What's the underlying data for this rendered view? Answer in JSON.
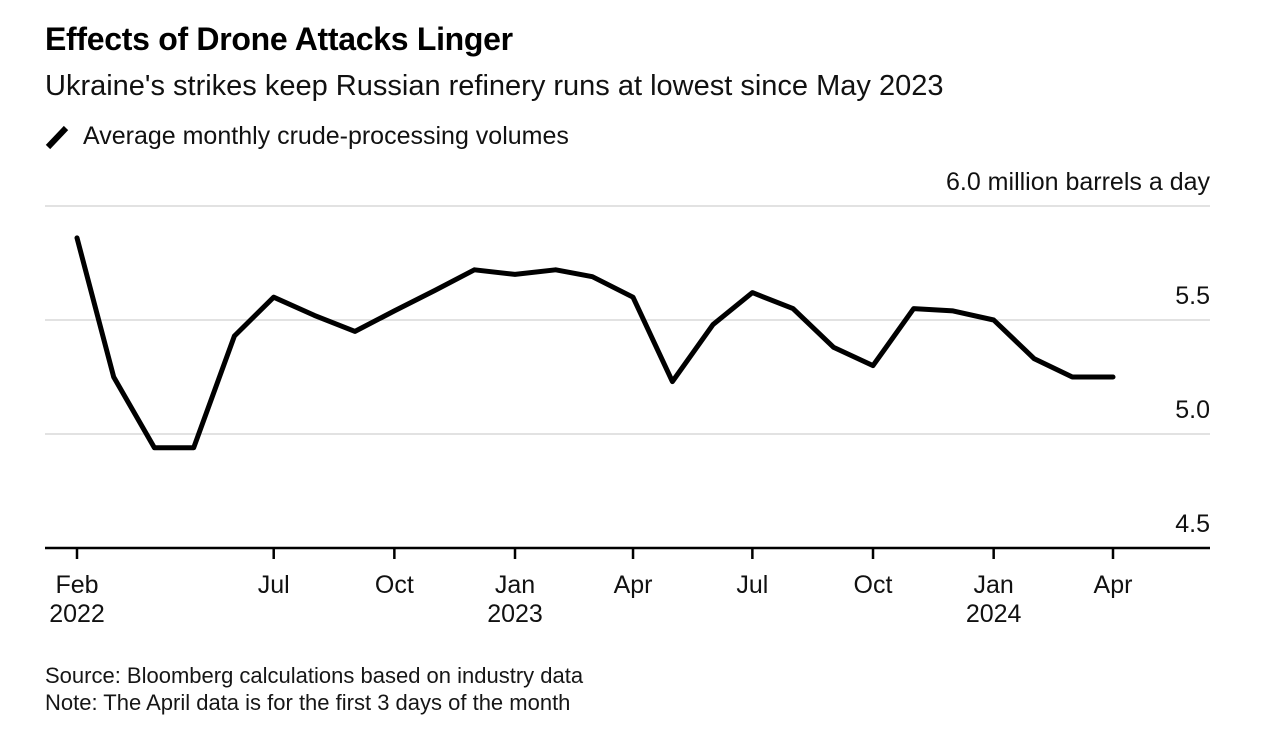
{
  "header": {
    "title": "Effects of Drone Attacks Linger",
    "subtitle": "Ukraine's strikes keep Russian refinery runs at lowest since May 2023"
  },
  "legend": {
    "label": "Average monthly crude-processing volumes",
    "icon": "line-series-icon",
    "color": "#000000"
  },
  "chart_data": {
    "type": "line",
    "title": "Effects of Drone Attacks Linger",
    "subtitle": "Ukraine's strikes keep Russian refinery runs at lowest since May 2023",
    "ylabel": "million barrels a day",
    "ylim": [
      4.5,
      6.0
    ],
    "grid": "horizontal",
    "legend_position": "top-left",
    "line_color": "#000000",
    "gridline_color": "#d8d8d8",
    "axis_color": "#000000",
    "y_ticks": [
      {
        "value": 6.0,
        "label": "6.0 million barrels a day",
        "gridline": true
      },
      {
        "value": 5.5,
        "label": "5.5",
        "gridline": true
      },
      {
        "value": 5.0,
        "label": "5.0",
        "gridline": true
      },
      {
        "value": 4.5,
        "label": "4.5",
        "gridline": false
      }
    ],
    "x_ticks": [
      {
        "date": "2022-02",
        "label": "Feb",
        "year": "2022"
      },
      {
        "date": "2022-07",
        "label": "Jul"
      },
      {
        "date": "2022-10",
        "label": "Oct"
      },
      {
        "date": "2023-01",
        "label": "Jan",
        "year": "2023"
      },
      {
        "date": "2023-04",
        "label": "Apr"
      },
      {
        "date": "2023-07",
        "label": "Jul"
      },
      {
        "date": "2023-10",
        "label": "Oct"
      },
      {
        "date": "2024-01",
        "label": "Jan",
        "year": "2024"
      },
      {
        "date": "2024-04",
        "label": "Apr"
      }
    ],
    "series": [
      {
        "name": "Average monthly crude-processing volumes",
        "points": [
          {
            "date": "2022-02",
            "value": 5.86
          },
          {
            "date": "2022-03",
            "value": 5.25
          },
          {
            "date": "2022-04",
            "value": 4.94
          },
          {
            "date": "2022-05",
            "value": 4.94
          },
          {
            "date": "2022-06",
            "value": 5.43
          },
          {
            "date": "2022-07",
            "value": 5.6
          },
          {
            "date": "2022-08",
            "value": 5.52
          },
          {
            "date": "2022-09",
            "value": 5.45
          },
          {
            "date": "2022-10",
            "value": 5.54
          },
          {
            "date": "2022-11",
            "value": 5.63
          },
          {
            "date": "2022-12",
            "value": 5.72
          },
          {
            "date": "2023-01",
            "value": 5.7
          },
          {
            "date": "2023-02",
            "value": 5.72
          },
          {
            "date": "2023-03",
            "value": 5.69
          },
          {
            "date": "2023-04",
            "value": 5.6
          },
          {
            "date": "2023-05",
            "value": 5.23
          },
          {
            "date": "2023-06",
            "value": 5.48
          },
          {
            "date": "2023-07",
            "value": 5.62
          },
          {
            "date": "2023-08",
            "value": 5.55
          },
          {
            "date": "2023-09",
            "value": 5.38
          },
          {
            "date": "2023-10",
            "value": 5.3
          },
          {
            "date": "2023-11",
            "value": 5.55
          },
          {
            "date": "2023-12",
            "value": 5.54
          },
          {
            "date": "2024-01",
            "value": 5.5
          },
          {
            "date": "2024-02",
            "value": 5.33
          },
          {
            "date": "2024-03",
            "value": 5.25
          },
          {
            "date": "2024-04",
            "value": 5.25
          }
        ]
      }
    ]
  },
  "footer": {
    "source": "Source: Bloomberg calculations based on industry data",
    "note": "Note: The April data is for the first 3 days of the month"
  }
}
